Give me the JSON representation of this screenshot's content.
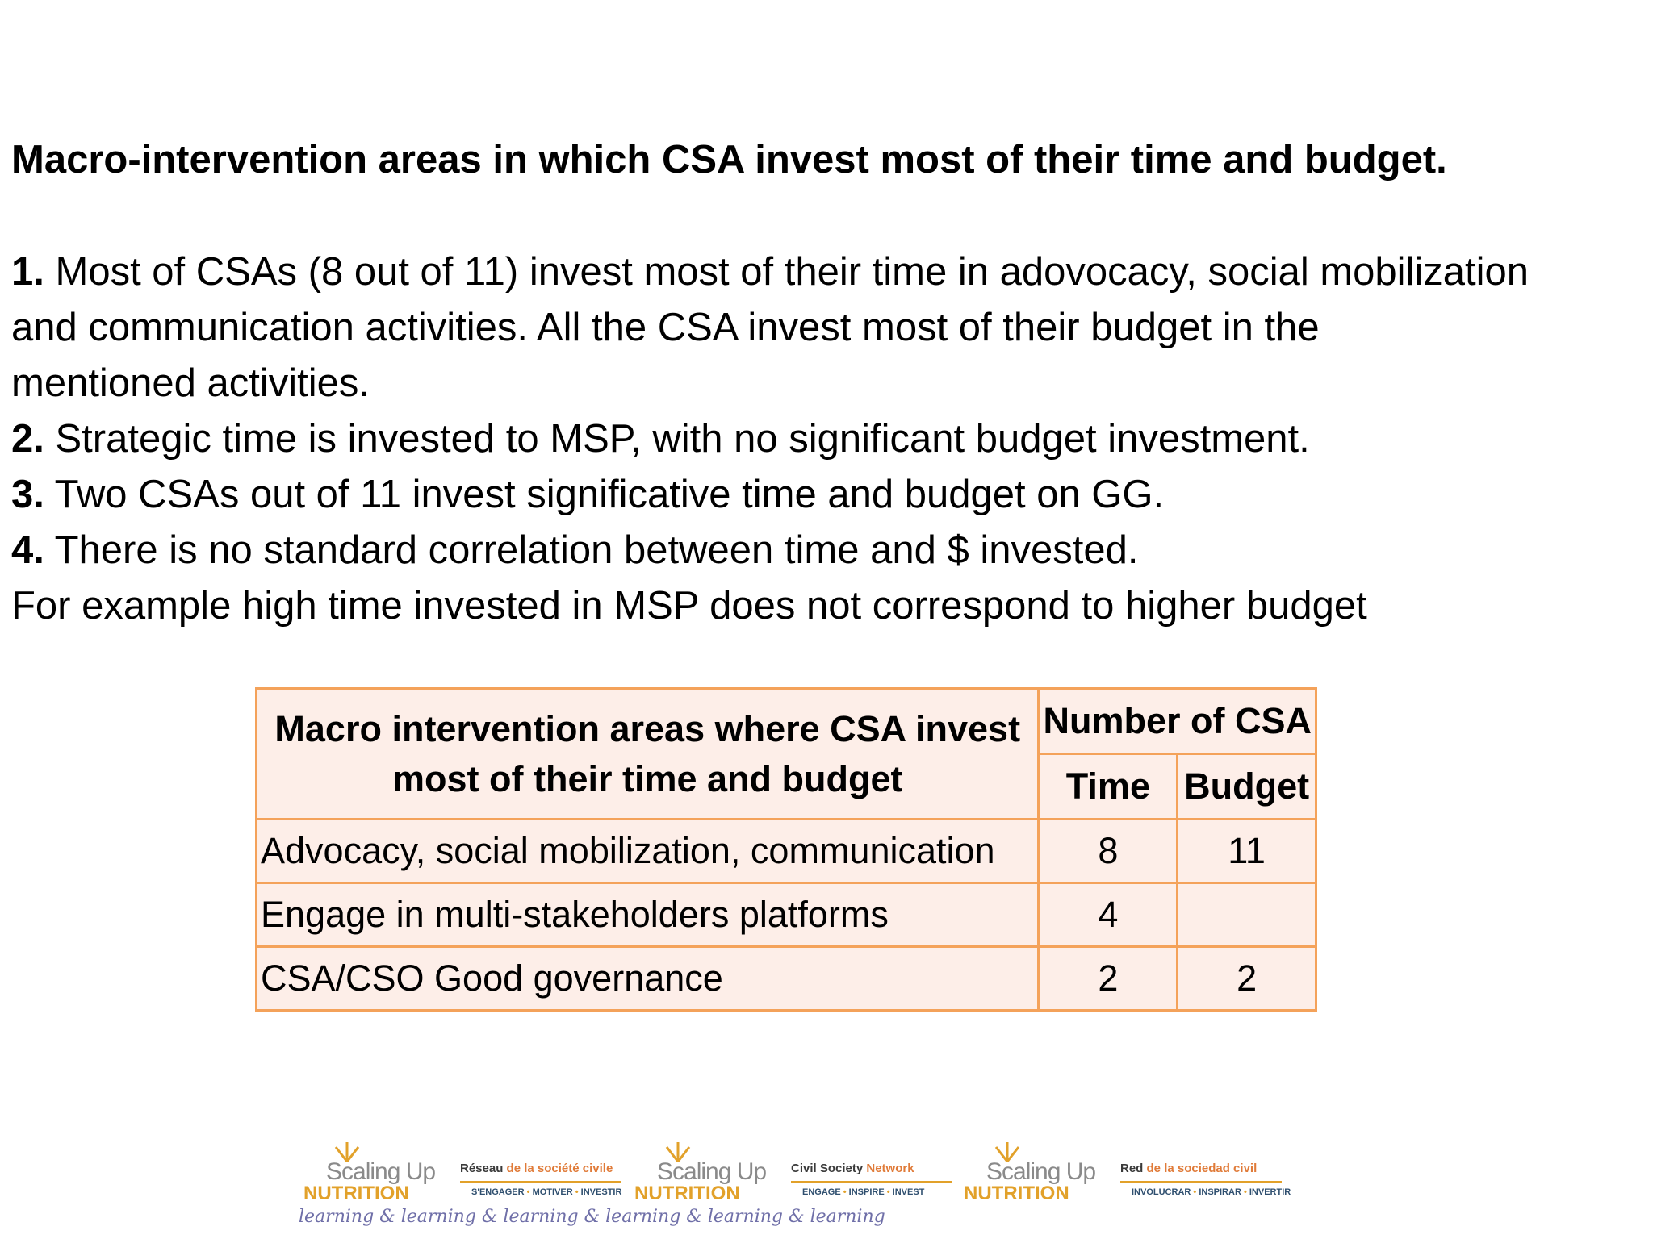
{
  "title": "Macro-intervention areas in which CSA invest most of their time and budget.",
  "points": [
    {
      "num": "1.",
      "lines": [
        "Most of CSAs (8 out of 11) invest most of their time in adovocacy, social mobilization",
        "and communication activities. All the CSA invest most of their budget in the",
        "mentioned activities."
      ]
    },
    {
      "num": "2.",
      "lines": [
        "Strategic time is invested to MSP, with no significant budget investment."
      ]
    },
    {
      "num": "3.",
      "lines": [
        "Two CSAs out of 11 invest significative time and budget on GG."
      ]
    },
    {
      "num": "4.",
      "lines": [
        "There is no standard correlation between time and $ invested."
      ]
    }
  ],
  "example_line": "For example high time invested in MSP does not correspond to higher budget",
  "table": {
    "header_area": "Macro intervention areas where CSA invest most of their time and budget",
    "header_group": "Number of CSA",
    "header_time": "Time",
    "header_budget": "Budget",
    "rows": [
      {
        "area": "Advocacy, social mobilization, communication",
        "time": "8",
        "budget": "11"
      },
      {
        "area": "Engage in multi-stakeholders platforms",
        "time": "4",
        "budget": ""
      },
      {
        "area": "CSA/CSO Good governance",
        "time": "2",
        "budget": "2"
      }
    ],
    "border_color": "#f4a25a",
    "fill_color": "#fdeee8"
  },
  "footer": {
    "logos": [
      {
        "brand_top": "Scaling Up",
        "brand_bottom": "NUTRITION",
        "network_a": "Réseau",
        "network_b": "de la société civile",
        "tagline": [
          "S'ENGAGER",
          "MOTIVER",
          "INVESTIR"
        ]
      },
      {
        "brand_top": "Scaling Up",
        "brand_bottom": "NUTRITION",
        "network_a": "Civil Society",
        "network_b": "Network",
        "tagline": [
          "ENGAGE",
          "INSPIRE",
          "INVEST"
        ]
      },
      {
        "brand_top": "Scaling Up",
        "brand_bottom": "NUTRITION",
        "network_a": "Red",
        "network_b": "de la sociedad civil",
        "tagline": [
          "INVOLUCRAR",
          "INSPIRAR",
          "INVERTIR"
        ]
      }
    ],
    "learning_text": "learning & learning & learning & learning & learning & learning",
    "brand_color": "#e2a12a"
  }
}
